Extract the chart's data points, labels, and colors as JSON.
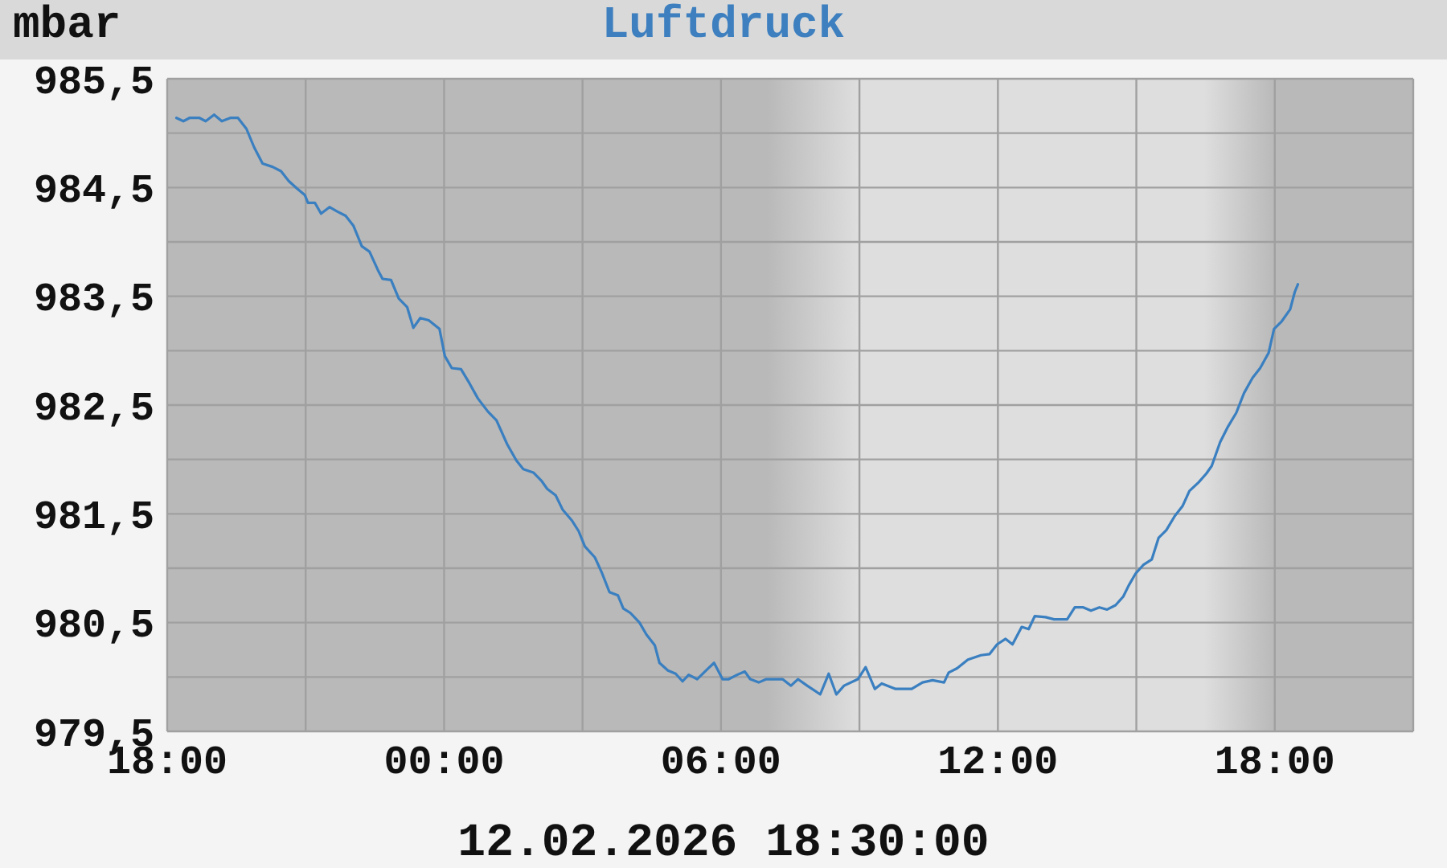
{
  "chart_data": {
    "type": "line",
    "title": "Luftdruck",
    "ylabel": "mbar",
    "annotations": [
      "12.02.2026 18:30:00"
    ],
    "x": [
      "2026-02-11T18:12",
      "2026-02-11T18:21",
      "2026-02-11T18:29",
      "2026-02-11T18:42",
      "2026-02-11T18:50",
      "2026-02-11T19:01",
      "2026-02-11T19:11",
      "2026-02-11T19:22",
      "2026-02-11T19:32",
      "2026-02-11T19:43",
      "2026-02-11T19:53",
      "2026-02-11T20:04",
      "2026-02-11T20:17",
      "2026-02-11T20:28",
      "2026-02-11T20:38",
      "2026-02-11T20:49",
      "2026-02-11T20:59",
      "2026-02-11T21:03",
      "2026-02-11T21:12",
      "2026-02-11T21:20",
      "2026-02-11T21:31",
      "2026-02-11T21:41",
      "2026-02-11T21:52",
      "2026-02-11T22:02",
      "2026-02-11T22:13",
      "2026-02-11T22:23",
      "2026-02-11T22:34",
      "2026-02-11T22:40",
      "2026-02-11T22:51",
      "2026-02-11T23:01",
      "2026-02-11T23:12",
      "2026-02-11T23:20",
      "2026-02-11T23:29",
      "2026-02-11T23:40",
      "2026-02-11T23:54",
      "2026-02-12T00:01",
      "2026-02-12T00:10",
      "2026-02-12T00:22",
      "2026-02-12T00:33",
      "2026-02-12T00:44",
      "2026-02-12T00:57",
      "2026-02-12T01:08",
      "2026-02-12T01:22",
      "2026-02-12T01:34",
      "2026-02-12T01:43",
      "2026-02-12T01:56",
      "2026-02-12T02:07",
      "2026-02-12T02:14",
      "2026-02-12T02:25",
      "2026-02-12T02:34",
      "2026-02-12T02:46",
      "2026-02-12T02:55",
      "2026-02-12T03:03",
      "2026-02-12T03:16",
      "2026-02-12T03:25",
      "2026-02-12T03:35",
      "2026-02-12T03:46",
      "2026-02-12T03:53",
      "2026-02-12T04:02",
      "2026-02-12T04:14",
      "2026-02-12T04:23",
      "2026-02-12T04:34",
      "2026-02-12T04:40",
      "2026-02-12T04:51",
      "2026-02-12T05:01",
      "2026-02-12T05:10",
      "2026-02-12T05:18",
      "2026-02-12T05:29",
      "2026-02-12T05:42",
      "2026-02-12T05:51",
      "2026-02-12T06:02",
      "2026-02-12T06:10",
      "2026-02-12T06:21",
      "2026-02-12T06:31",
      "2026-02-12T06:38",
      "2026-02-12T06:49",
      "2026-02-12T06:59",
      "2026-02-12T07:20",
      "2026-02-12T07:31",
      "2026-02-12T07:40",
      "2026-02-12T07:52",
      "2026-02-12T08:09",
      "2026-02-12T08:20",
      "2026-02-12T08:30",
      "2026-02-12T08:40",
      "2026-02-12T08:58",
      "2026-02-12T09:08",
      "2026-02-12T09:20",
      "2026-02-12T09:29",
      "2026-02-12T09:47",
      "2026-02-12T10:08",
      "2026-02-12T10:22",
      "2026-02-12T10:35",
      "2026-02-12T10:50",
      "2026-02-12T10:56",
      "2026-02-12T11:07",
      "2026-02-12T11:21",
      "2026-02-12T11:38",
      "2026-02-12T11:49",
      "2026-02-12T11:59",
      "2026-02-12T12:10",
      "2026-02-12T12:19",
      "2026-02-12T12:31",
      "2026-02-12T12:40",
      "2026-02-12T12:48",
      "2026-02-12T13:02",
      "2026-02-12T13:13",
      "2026-02-12T13:30",
      "2026-02-12T13:40",
      "2026-02-12T13:51",
      "2026-02-12T14:01",
      "2026-02-12T14:12",
      "2026-02-12T14:22",
      "2026-02-12T14:33",
      "2026-02-12T14:43",
      "2026-02-12T14:50",
      "2026-02-12T14:59",
      "2026-02-12T15:09",
      "2026-02-12T15:20",
      "2026-02-12T15:29",
      "2026-02-12T15:39",
      "2026-02-12T15:50",
      "2026-02-12T16:00",
      "2026-02-12T16:09",
      "2026-02-12T16:21",
      "2026-02-12T16:31",
      "2026-02-12T16:38",
      "2026-02-12T16:49",
      "2026-02-12T16:59",
      "2026-02-12T17:10",
      "2026-02-12T17:20",
      "2026-02-12T17:31",
      "2026-02-12T17:41",
      "2026-02-12T17:52",
      "2026-02-12T17:59",
      "2026-02-12T18:09",
      "2026-02-12T18:20",
      "2026-02-12T18:26",
      "2026-02-12T18:30"
    ],
    "values": [
      985.14,
      985.11,
      985.14,
      985.14,
      985.11,
      985.17,
      985.11,
      985.14,
      985.14,
      985.04,
      984.87,
      984.72,
      984.69,
      984.65,
      984.56,
      984.49,
      984.43,
      984.36,
      984.36,
      984.26,
      984.32,
      984.28,
      984.24,
      984.15,
      983.96,
      983.91,
      983.74,
      983.66,
      983.65,
      983.48,
      983.4,
      983.21,
      983.3,
      983.28,
      983.2,
      982.95,
      982.84,
      982.83,
      982.7,
      982.56,
      982.44,
      982.36,
      982.14,
      981.99,
      981.91,
      981.88,
      981.8,
      981.73,
      981.67,
      981.54,
      981.44,
      981.34,
      981.2,
      981.1,
      980.96,
      980.78,
      980.75,
      980.63,
      980.59,
      980.5,
      980.39,
      980.29,
      980.13,
      980.06,
      980.03,
      979.96,
      980.02,
      979.98,
      980.07,
      980.13,
      979.98,
      979.98,
      980.02,
      980.05,
      979.98,
      979.95,
      979.98,
      979.98,
      979.92,
      979.98,
      979.92,
      979.84,
      980.03,
      979.84,
      979.92,
      979.98,
      980.09,
      979.89,
      979.94,
      979.89,
      979.89,
      979.95,
      979.97,
      979.95,
      980.04,
      980.08,
      980.16,
      980.2,
      980.21,
      980.3,
      980.35,
      980.3,
      980.46,
      980.44,
      980.56,
      980.55,
      980.53,
      980.53,
      980.64,
      980.64,
      980.61,
      980.64,
      980.62,
      980.66,
      980.74,
      980.84,
      980.95,
      981.03,
      981.08,
      981.28,
      981.35,
      981.48,
      981.57,
      981.71,
      981.79,
      981.87,
      981.94,
      982.16,
      982.3,
      982.43,
      982.61,
      982.75,
      982.84,
      982.98,
      983.2,
      983.27,
      983.38,
      983.54,
      983.61
    ],
    "color": "#3a7fc0",
    "xlim": [
      "2026-02-11T18:00",
      "2026-02-12T21:00"
    ],
    "xticks": [
      {
        "value": "2026-02-11T18:00",
        "label": "18:00"
      },
      {
        "value": "2026-02-11T21:00",
        "label": null
      },
      {
        "value": "2026-02-12T00:00",
        "label": "00:00"
      },
      {
        "value": "2026-02-12T03:00",
        "label": null
      },
      {
        "value": "2026-02-12T06:00",
        "label": "06:00"
      },
      {
        "value": "2026-02-12T09:00",
        "label": null
      },
      {
        "value": "2026-02-12T12:00",
        "label": "12:00"
      },
      {
        "value": "2026-02-12T15:00",
        "label": null
      },
      {
        "value": "2026-02-12T18:00",
        "label": "18:00"
      },
      {
        "value": "2026-02-12T21:00",
        "label": null
      }
    ],
    "ylim": [
      979.5,
      985.5
    ],
    "yticks": [
      {
        "value": 979.5,
        "label": "979,5"
      },
      {
        "value": 980,
        "label": null
      },
      {
        "value": 980.5,
        "label": "980,5"
      },
      {
        "value": 981,
        "label": null
      },
      {
        "value": 981.5,
        "label": "981,5"
      },
      {
        "value": 982,
        "label": null
      },
      {
        "value": 982.5,
        "label": "982,5"
      },
      {
        "value": 983,
        "label": null
      },
      {
        "value": 983.5,
        "label": "983,5"
      },
      {
        "value": 984,
        "label": null
      },
      {
        "value": 984.5,
        "label": "984,5"
      },
      {
        "value": 985,
        "label": null
      },
      {
        "value": 985.5,
        "label": "985,5"
      }
    ],
    "grid": true,
    "bands": [
      {
        "axis": "x",
        "from": "2026-02-12T07:00",
        "to": "2026-02-12T18:00",
        "color": "#dedede"
      }
    ]
  }
}
